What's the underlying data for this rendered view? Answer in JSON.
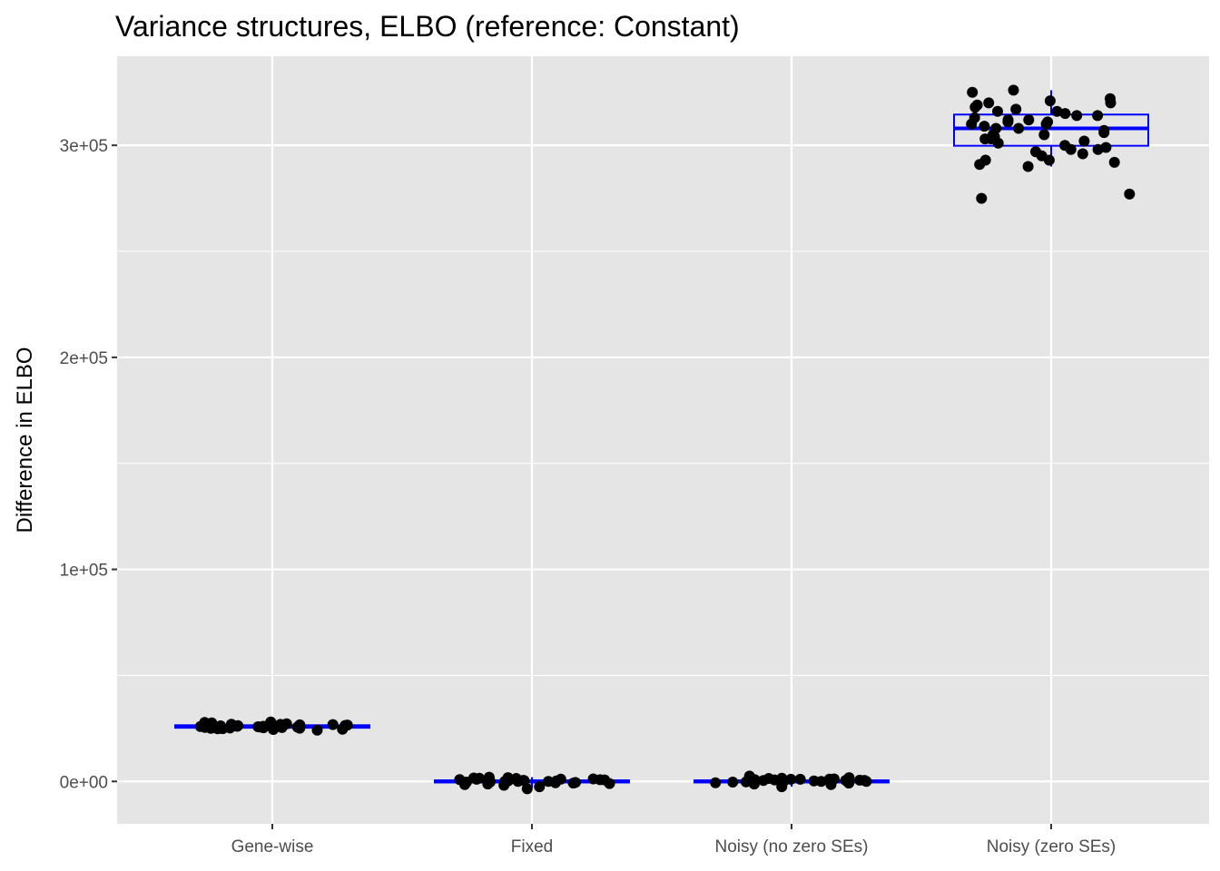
{
  "chart_data": {
    "type": "boxplot",
    "title": "Variance structures, ELBO (reference: Constant)",
    "xlabel": "",
    "ylabel": "Difference in ELBO",
    "categories": [
      "Gene-wise",
      "Fixed",
      "Noisy (no zero SEs)",
      "Noisy (zero SEs)"
    ],
    "yticks": [
      0,
      100000,
      200000,
      300000
    ],
    "ytick_labels": [
      "0e+00",
      "1e+05",
      "2e+05",
      "3e+05"
    ],
    "ylim": [
      -20000,
      342000
    ],
    "grid": true,
    "legend": "none",
    "colors": {
      "panel": "#e5e5e5",
      "grid": "#ffffff",
      "box": "#0000ff",
      "point": "#000000"
    },
    "boxes": [
      {
        "category": "Gene-wise",
        "q1": 25300,
        "median": 25900,
        "q3": 26500,
        "whisker_low": 24000,
        "whisker_high": 28000
      },
      {
        "category": "Fixed",
        "q1": -500,
        "median": 0,
        "q3": 500,
        "whisker_low": -3000,
        "whisker_high": 2000
      },
      {
        "category": "Noisy (no zero SEs)",
        "q1": -500,
        "median": 0,
        "q3": 500,
        "whisker_low": -2500,
        "whisker_high": 2500
      },
      {
        "category": "Noisy (zero SEs)",
        "q1": 299800,
        "median": 308000,
        "q3": 314500,
        "whisker_low": 290000,
        "whisker_high": 326000
      }
    ],
    "points": [
      {
        "category": "Gene-wise",
        "values": [
          28000,
          26500,
          25000,
          27000,
          26000,
          24500,
          25500,
          26800,
          27200,
          25800,
          26300,
          24200,
          25600,
          27800,
          26100,
          25200,
          26700,
          24800,
          25400,
          27400,
          26200,
          25900,
          24600,
          26600,
          27600,
          25300,
          26400,
          24900,
          25700,
          26900,
          25100,
          26000
        ]
      },
      {
        "category": "Fixed",
        "values": [
          1500,
          -1000,
          500,
          2000,
          -2500,
          0,
          1000,
          -500,
          300,
          1800,
          -1500,
          800,
          -200,
          1200,
          -3500,
          600,
          0,
          1400,
          -800,
          200,
          1600,
          -1200,
          400,
          -300,
          900,
          0,
          1100,
          -600,
          700,
          -1800
        ]
      },
      {
        "category": "Noisy (no zero SEs)",
        "values": [
          -500,
          1000,
          -2500,
          500,
          0,
          1500,
          -1000,
          2500,
          300,
          -300,
          800,
          1200,
          -800,
          0,
          600,
          1800,
          -1500,
          200,
          1000,
          -600,
          400,
          1400,
          -200,
          700,
          0,
          1100,
          -1200,
          500
        ]
      },
      {
        "category": "Noisy (zero SEs)",
        "values": [
          325000,
          312000,
          300000,
          295000,
          293000,
          277000,
          305000,
          320000,
          315000,
          310000,
          303000,
          298000,
          292000,
          326000,
          318000,
          308000,
          302000,
          296000,
          314000,
          322000,
          311000,
          307000,
          301000,
          319000,
          309000,
          313000,
          316000,
          306000,
          299000,
          304000,
          321000,
          291000,
          317000,
          293000,
          275000,
          290000,
          312000,
          308000,
          314000,
          305000,
          316000,
          310000,
          298000,
          303000,
          297000,
          320000,
          311000
        ]
      }
    ]
  }
}
